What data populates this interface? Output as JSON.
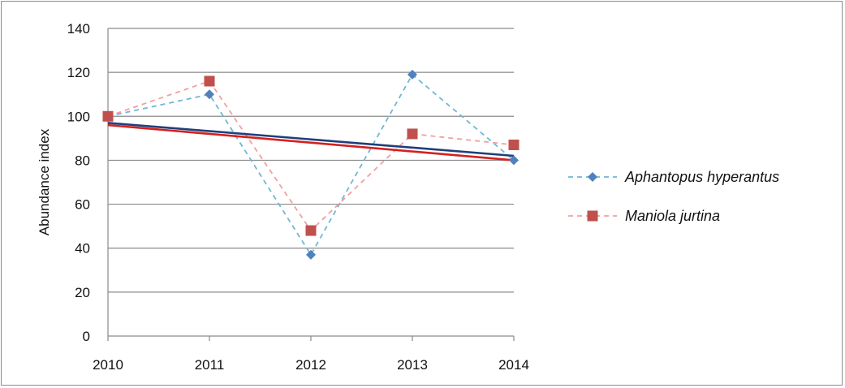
{
  "chart_data": {
    "type": "line",
    "title": "",
    "xlabel": "",
    "ylabel": "Abundance index",
    "categories": [
      "2010",
      "2011",
      "2012",
      "2013",
      "2014"
    ],
    "ylim": [
      0,
      140
    ],
    "yticks": [
      "0",
      "20",
      "40",
      "60",
      "80",
      "100",
      "120",
      "140"
    ],
    "grid": "horizontal",
    "legend_position": "right",
    "series": [
      {
        "name": "Aphantopus hyperantus",
        "values": [
          100,
          110,
          37,
          119,
          80
        ],
        "color": "#4f81bd",
        "line_style": "dashed",
        "marker": "diamond",
        "trend_color": "#1f3f7a",
        "trend_start": 97,
        "trend_end": 82
      },
      {
        "name": "Maniola jurtina",
        "values": [
          100,
          116,
          48,
          92,
          87
        ],
        "color": "#c0504d",
        "line_style": "dashed",
        "marker": "square",
        "trend_color": "#d42020",
        "trend_start": 96,
        "trend_end": 80
      }
    ]
  }
}
